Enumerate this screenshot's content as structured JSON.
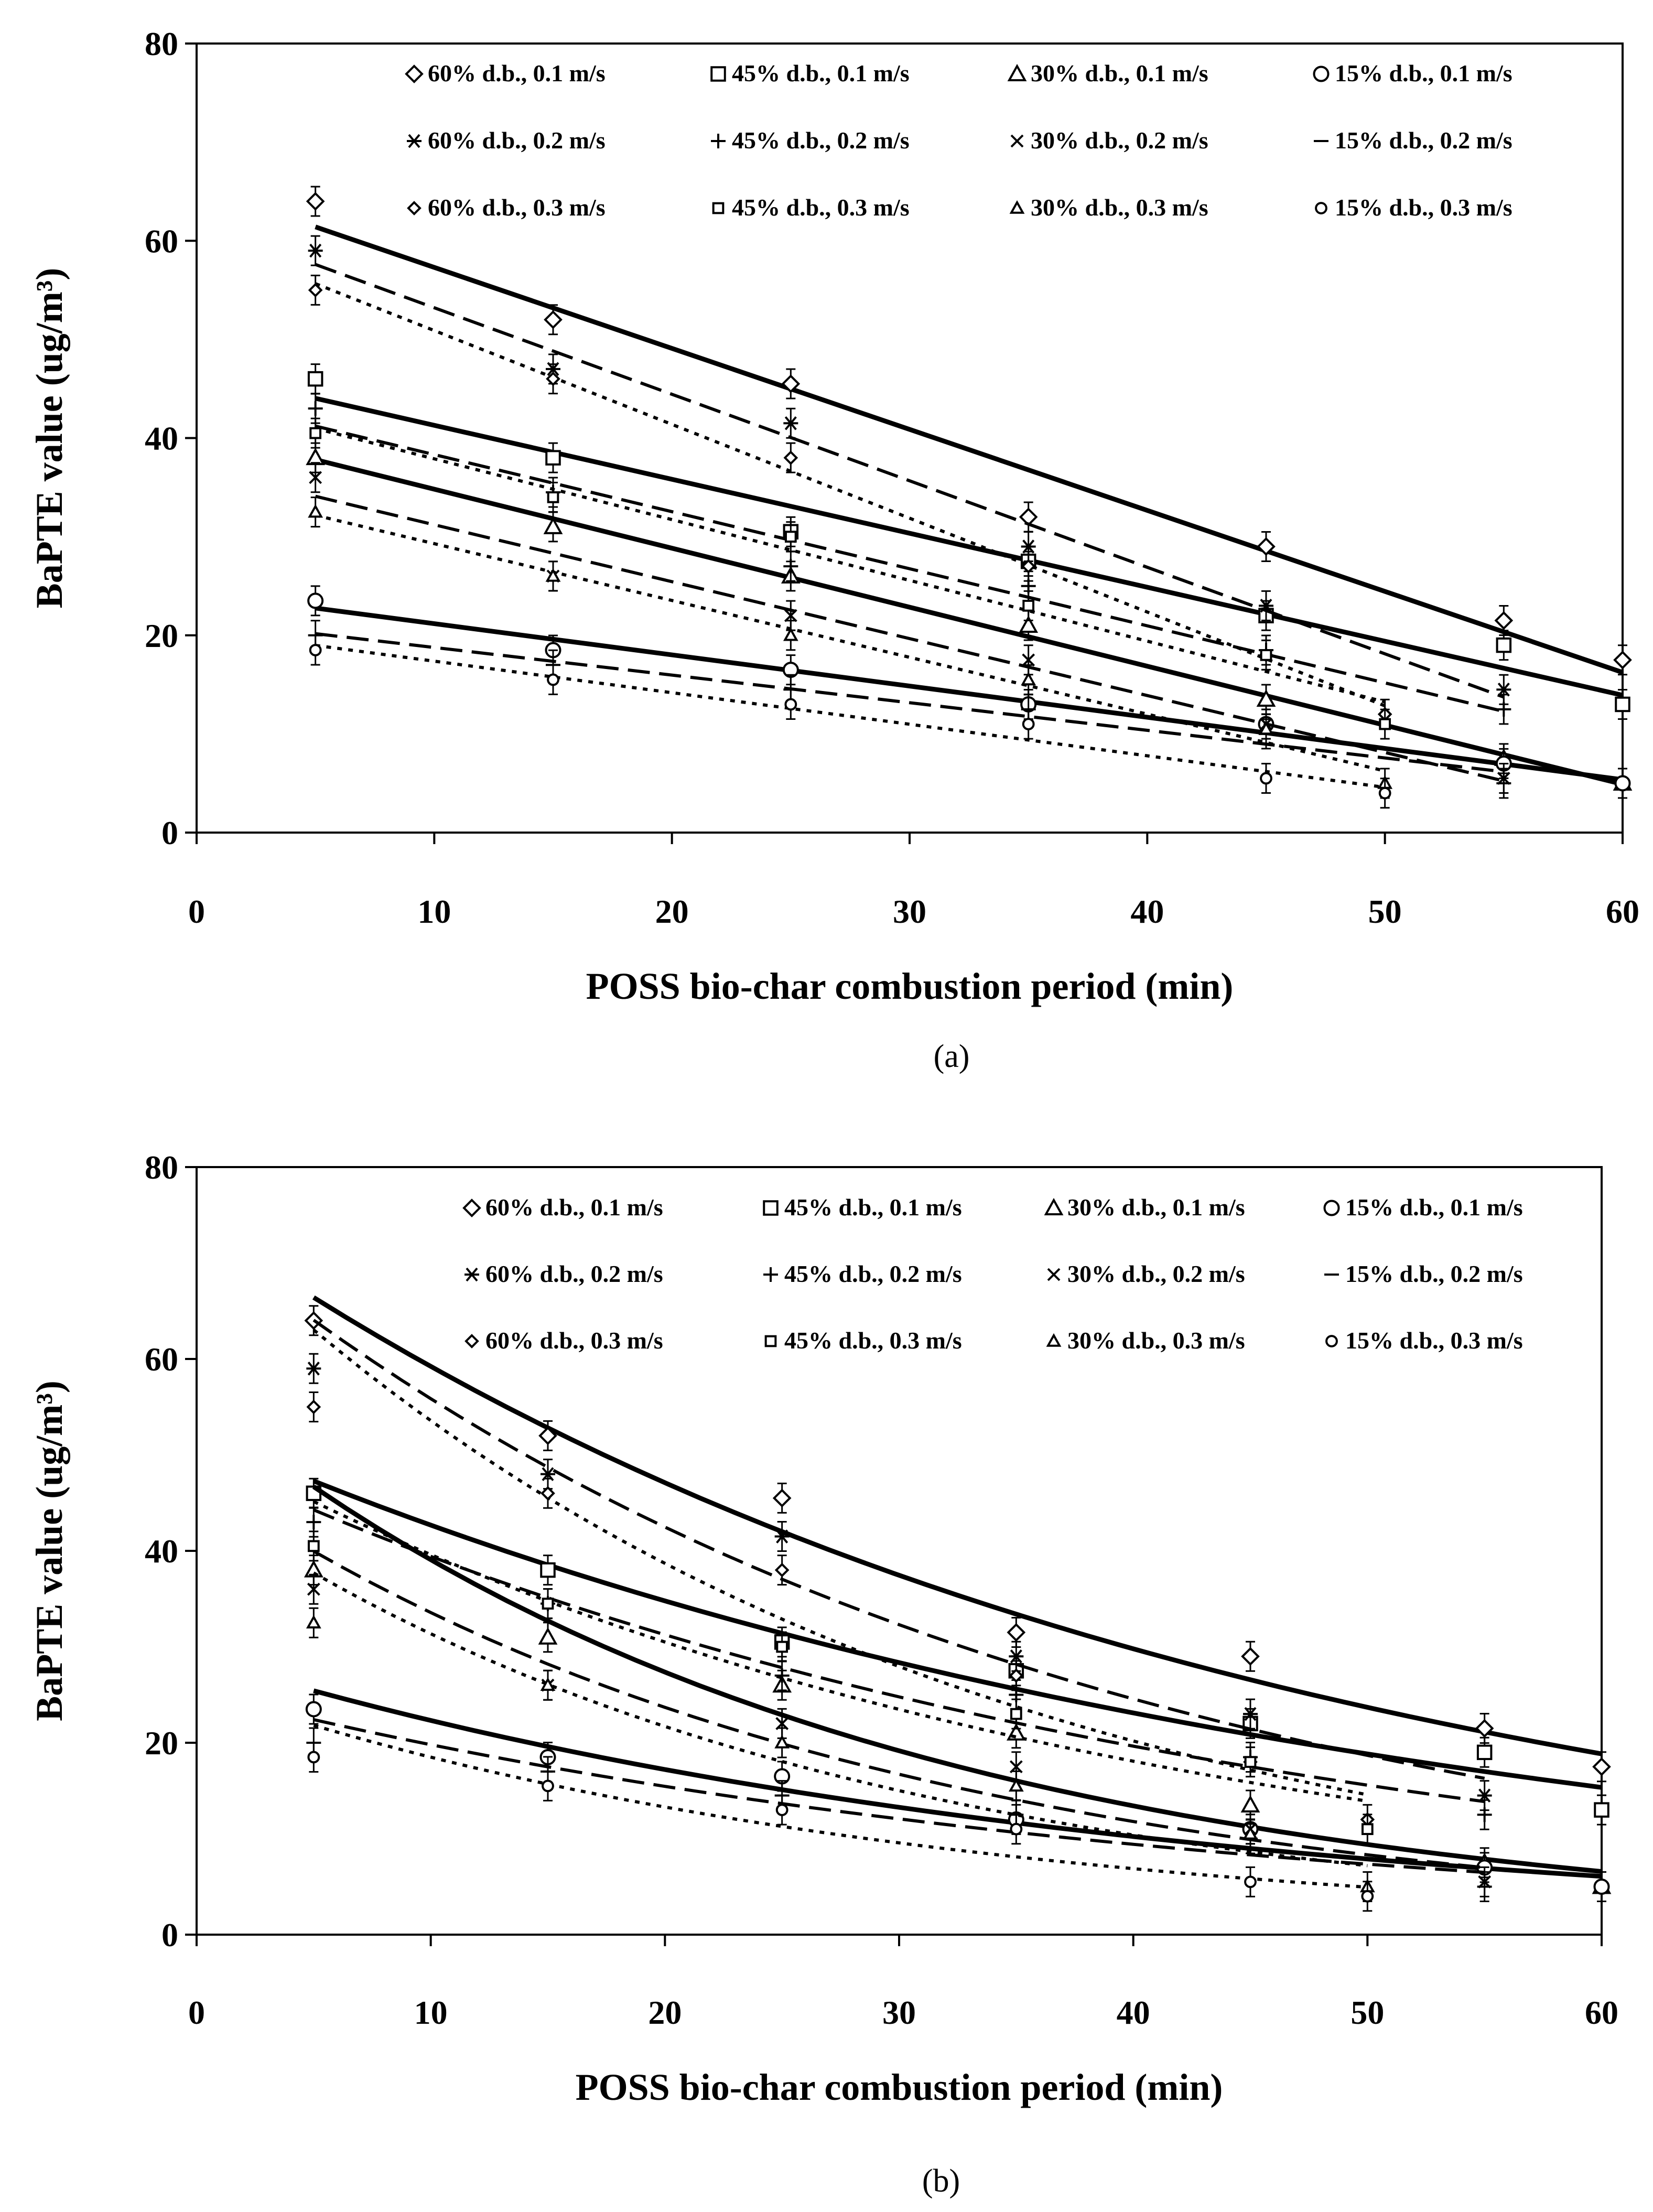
{
  "colors": {
    "ink": "#000000",
    "background": "#ffffff"
  },
  "legend_entries": [
    "60% d.b., 0.1 m/s",
    "45% d.b., 0.1 m/s",
    "30% d.b., 0.1 m/s",
    "15% d.b., 0.1 m/s",
    "60% d.b., 0.2 m/s",
    "45% d.b., 0.2 m/s",
    "30% d.b., 0.2 m/s",
    "15% d.b., 0.2 m/s",
    "60% d.b., 0.3 m/s",
    "45% d.b., 0.3 m/s",
    "30% d.b., 0.3 m/s",
    "15% d.b., 0.3 m/s"
  ],
  "chart_data": [
    {
      "type": "scatter",
      "caption": "(a)",
      "xlabel": "POSS bio-char combustion period (min)",
      "ylabel": "BaPTE value (ug/m³)",
      "xlim": [
        0,
        60
      ],
      "ylim": [
        0,
        80
      ],
      "xticks": [
        "0",
        "10",
        "20",
        "30",
        "40",
        "50",
        "60"
      ],
      "yticks": [
        "0",
        "20",
        "40",
        "60",
        "80"
      ],
      "fit": "linear",
      "series": [
        {
          "name": "60% d.b., 0.1 m/s",
          "marker": "diamond-open",
          "line": "solid",
          "x": [
            5,
            15,
            25,
            35,
            45,
            55,
            60
          ],
          "y": [
            64,
            52,
            45.5,
            32,
            29,
            21.5,
            17.5
          ]
        },
        {
          "name": "45% d.b., 0.1 m/s",
          "marker": "square-open",
          "line": "solid",
          "x": [
            5,
            15,
            25,
            35,
            45,
            55,
            60
          ],
          "y": [
            46,
            38,
            30.5,
            27.5,
            22,
            19,
            13
          ]
        },
        {
          "name": "30% d.b., 0.1 m/s",
          "marker": "triangle-open",
          "line": "solid",
          "x": [
            5,
            15,
            25,
            35,
            45,
            55,
            60
          ],
          "y": [
            38,
            31,
            26,
            21,
            13.5,
            7.5,
            5
          ]
        },
        {
          "name": "15% d.b., 0.1 m/s",
          "marker": "circle-open",
          "line": "solid",
          "x": [
            5,
            15,
            25,
            35,
            45,
            55,
            60
          ],
          "y": [
            23.5,
            18.5,
            16.5,
            13,
            11,
            7,
            5
          ]
        },
        {
          "name": "60% d.b., 0.2 m/s",
          "marker": "asterisk",
          "line": "dashed",
          "x": [
            5,
            15,
            25,
            35,
            45,
            55
          ],
          "y": [
            59,
            47,
            41.5,
            29,
            23,
            14.5
          ]
        },
        {
          "name": "45% d.b., 0.2 m/s",
          "marker": "plus",
          "line": "dashed",
          "x": [
            5,
            15,
            25,
            35,
            45,
            55
          ],
          "y": [
            43,
            34.5,
            27,
            25,
            18.5,
            12.5
          ]
        },
        {
          "name": "30% d.b., 0.2 m/s",
          "marker": "cross",
          "line": "dashed",
          "x": [
            5,
            15,
            25,
            35,
            45,
            55
          ],
          "y": [
            36,
            26,
            22,
            17.5,
            11,
            5.5
          ]
        },
        {
          "name": "15% d.b., 0.2 m/s",
          "marker": "dash",
          "line": "dashed",
          "x": [
            5,
            15,
            25,
            35,
            45,
            55
          ],
          "y": [
            20,
            17,
            14.5,
            12.5,
            10,
            5
          ]
        },
        {
          "name": "60% d.b., 0.3 m/s",
          "marker": "diamond-small",
          "line": "dotted",
          "x": [
            5,
            15,
            25,
            35,
            45,
            50
          ],
          "y": [
            55,
            46,
            38,
            27,
            18,
            12
          ]
        },
        {
          "name": "45% d.b., 0.3 m/s",
          "marker": "square-small",
          "line": "dotted",
          "x": [
            5,
            15,
            25,
            35,
            45,
            50
          ],
          "y": [
            40.5,
            34,
            30,
            23,
            18,
            11
          ]
        },
        {
          "name": "30% d.b., 0.3 m/s",
          "marker": "triangle-small",
          "line": "dotted",
          "x": [
            5,
            15,
            25,
            35,
            45,
            50
          ],
          "y": [
            32.5,
            26,
            20,
            15.5,
            10.5,
            5
          ]
        },
        {
          "name": "15% d.b., 0.3 m/s",
          "marker": "circle-small",
          "line": "dotted",
          "x": [
            5,
            15,
            25,
            35,
            45,
            50
          ],
          "y": [
            18.5,
            15.5,
            13,
            11,
            5.5,
            4
          ]
        }
      ]
    },
    {
      "type": "scatter",
      "caption": "(b)",
      "xlabel": "POSS bio-char combustion period (min)",
      "ylabel": "BaPTE value (ug/m³)",
      "xlim": [
        0,
        60
      ],
      "ylim": [
        0,
        80
      ],
      "xticks": [
        "0",
        "10",
        "20",
        "30",
        "40",
        "50",
        "60"
      ],
      "yticks": [
        "0",
        "20",
        "40",
        "60",
        "80"
      ],
      "fit": "curve",
      "series": [
        {
          "name": "60% d.b., 0.1 m/s",
          "marker": "diamond-open",
          "line": "solid",
          "x": [
            5,
            15,
            25,
            35,
            45,
            55,
            60
          ],
          "y": [
            64,
            52,
            45.5,
            31.5,
            29,
            21.5,
            17.5
          ]
        },
        {
          "name": "45% d.b., 0.1 m/s",
          "marker": "square-open",
          "line": "solid",
          "x": [
            5,
            15,
            25,
            35,
            45,
            55,
            60
          ],
          "y": [
            46,
            38,
            30.5,
            27.5,
            22,
            19,
            13
          ]
        },
        {
          "name": "30% d.b., 0.1 m/s",
          "marker": "triangle-open",
          "line": "solid",
          "x": [
            5,
            15,
            25,
            35,
            45,
            55,
            60
          ],
          "y": [
            38,
            31,
            26,
            21,
            13.5,
            7.5,
            5
          ]
        },
        {
          "name": "15% d.b., 0.1 m/s",
          "marker": "circle-open",
          "line": "solid",
          "x": [
            5,
            15,
            25,
            35,
            45,
            55,
            60
          ],
          "y": [
            23.5,
            18.5,
            16.5,
            12,
            11,
            7,
            5
          ]
        },
        {
          "name": "60% d.b., 0.2 m/s",
          "marker": "asterisk",
          "line": "dashed",
          "x": [
            5,
            15,
            25,
            35,
            45,
            55
          ],
          "y": [
            59,
            48,
            41.5,
            29,
            23,
            14.5
          ]
        },
        {
          "name": "45% d.b., 0.2 m/s",
          "marker": "plus",
          "line": "dashed",
          "x": [
            5,
            15,
            25,
            35,
            45,
            55
          ],
          "y": [
            43,
            34.5,
            27,
            25,
            18.5,
            12.5
          ]
        },
        {
          "name": "30% d.b., 0.2 m/s",
          "marker": "cross",
          "line": "dashed",
          "x": [
            5,
            15,
            25,
            35,
            45,
            55
          ],
          "y": [
            36,
            26,
            22,
            17.5,
            11,
            5.5
          ]
        },
        {
          "name": "15% d.b., 0.2 m/s",
          "marker": "dash",
          "line": "dashed",
          "x": [
            5,
            15,
            25,
            35,
            45,
            55
          ],
          "y": [
            20,
            17,
            14.5,
            12.5,
            10,
            5
          ]
        },
        {
          "name": "60% d.b., 0.3 m/s",
          "marker": "diamond-small",
          "line": "dotted",
          "x": [
            5,
            15,
            25,
            35,
            45,
            50
          ],
          "y": [
            55,
            46,
            38,
            27,
            18,
            12
          ]
        },
        {
          "name": "45% d.b., 0.3 m/s",
          "marker": "square-small",
          "line": "dotted",
          "x": [
            5,
            15,
            25,
            35,
            45,
            50
          ],
          "y": [
            40.5,
            34.5,
            30,
            23,
            18,
            11
          ]
        },
        {
          "name": "30% d.b., 0.3 m/s",
          "marker": "triangle-small",
          "line": "dotted",
          "x": [
            5,
            15,
            25,
            35,
            45,
            50
          ],
          "y": [
            32.5,
            26,
            20,
            15.5,
            10.5,
            5
          ]
        },
        {
          "name": "15% d.b., 0.3 m/s",
          "marker": "circle-small",
          "line": "dotted",
          "x": [
            5,
            15,
            25,
            35,
            45,
            50
          ],
          "y": [
            18.5,
            15.5,
            13,
            11,
            5.5,
            4
          ]
        }
      ]
    }
  ]
}
